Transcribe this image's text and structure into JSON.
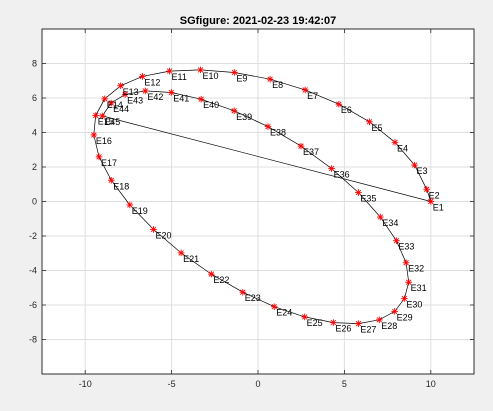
{
  "chart_data": {
    "type": "scatter",
    "title": "SGfigure: 2021-02-23 19:42:07",
    "xlabel": "",
    "ylabel": "",
    "xlim": [
      -12.5,
      12.5
    ],
    "ylim": [
      -10,
      10
    ],
    "xticks": [
      -10,
      -5,
      0,
      5,
      10
    ],
    "xtick_labels": [
      "-10",
      "-5",
      "0",
      "5",
      "10"
    ],
    "yticks": [
      -8,
      -6,
      -4,
      -2,
      0,
      2,
      4,
      6,
      8
    ],
    "ytick_labels": [
      "-8",
      "-6",
      "-4",
      "-2",
      "0",
      "2",
      "4",
      "6",
      "8"
    ],
    "grid": true,
    "marker": "*",
    "marker_color": "#ff0000",
    "line_color": "#000000",
    "series": [
      {
        "labels": [
          "E1",
          "E2",
          "E3",
          "E4",
          "E5",
          "E6",
          "E7",
          "E8",
          "E9",
          "E10",
          "E11",
          "E12",
          "E13",
          "E14",
          "E15",
          "E16",
          "E17",
          "E18",
          "E19",
          "E20",
          "E21",
          "E22",
          "E23",
          "E24",
          "E25",
          "E26",
          "E27",
          "E28",
          "E29",
          "E30",
          "E31",
          "E32",
          "E33",
          "E34",
          "E35",
          "E36",
          "E37",
          "E38",
          "E39",
          "E40",
          "E41",
          "E42",
          "E43",
          "E44",
          "E45"
        ],
        "x": [
          10.0,
          9.76,
          9.06,
          7.93,
          6.45,
          4.68,
          2.73,
          0.7,
          -1.37,
          -3.33,
          -5.12,
          -6.69,
          -7.95,
          -8.87,
          -9.39,
          -9.5,
          -9.2,
          -8.49,
          -7.42,
          -6.05,
          -4.45,
          -2.7,
          -0.88,
          0.94,
          2.7,
          4.36,
          5.81,
          7.02,
          7.91,
          8.47,
          8.72,
          8.57,
          8.01,
          7.08,
          5.81,
          4.26,
          2.49,
          0.58,
          -1.38,
          -3.29,
          -5.02,
          -6.52,
          -7.69,
          -8.5,
          -9.01
        ],
        "y": [
          0.0,
          0.71,
          2.11,
          3.43,
          4.62,
          5.64,
          6.47,
          7.09,
          7.48,
          7.63,
          7.56,
          7.25,
          6.71,
          5.95,
          4.99,
          3.86,
          2.59,
          1.23,
          -0.2,
          -1.62,
          -2.98,
          -4.21,
          -5.26,
          -6.1,
          -6.69,
          -7.02,
          -7.08,
          -6.86,
          -6.37,
          -5.63,
          -4.68,
          -3.55,
          -2.27,
          -0.9,
          0.52,
          1.91,
          3.21,
          4.34,
          5.26,
          5.93,
          6.32,
          6.41,
          6.21,
          5.71,
          4.96
        ]
      }
    ]
  }
}
